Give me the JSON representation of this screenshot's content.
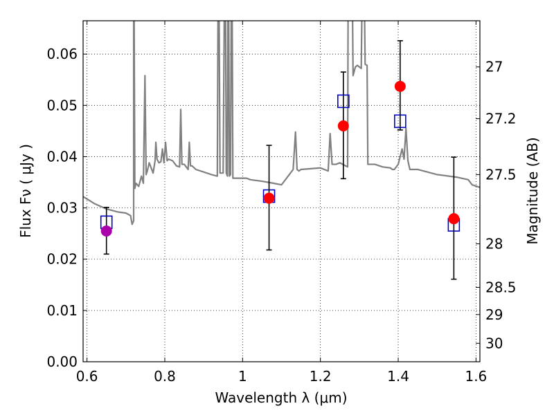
{
  "chart_data": {
    "type": "scatter",
    "xlabel": "Wavelength  λ (μm)",
    "ylabel": "Flux  Fν  ( μJy )",
    "ylabel_right": "Magnitude (AB)",
    "xlim": [
      0.59,
      1.61
    ],
    "ylim": [
      0.0,
      0.0665
    ],
    "grid": true,
    "x_ticks": [
      0.6,
      0.8,
      1.0,
      1.2,
      1.4,
      1.6
    ],
    "x_tick_labels": [
      "0.6",
      "0.8",
      "1",
      "1.2",
      "1.4",
      "1.6"
    ],
    "y_ticks": [
      0.0,
      0.01,
      0.02,
      0.03,
      0.04,
      0.05,
      0.06
    ],
    "y_tick_labels": [
      "0.00",
      "0.01",
      "0.02",
      "0.03",
      "0.04",
      "0.05",
      "0.06"
    ],
    "right_axis": {
      "label_values_flux": [
        0.0575,
        0.0474,
        0.0365,
        0.023,
        0.0145,
        0.0092,
        0.0036
      ],
      "labels": [
        "27",
        "27.2",
        "27.5",
        "28",
        "28.5",
        "29",
        "30"
      ]
    },
    "series": [
      {
        "kind": "model_spectrum",
        "color": "#808080",
        "x": [
          0.59,
          0.62,
          0.65,
          0.68,
          0.7,
          0.712,
          0.716,
          0.72,
          0.72,
          0.723,
          0.726,
          0.733,
          0.74,
          0.745,
          0.749,
          0.752,
          0.755,
          0.76,
          0.77,
          0.775,
          0.777,
          0.78,
          0.785,
          0.79,
          0.794,
          0.798,
          0.802,
          0.806,
          0.81,
          0.82,
          0.83,
          0.838,
          0.841,
          0.844,
          0.85,
          0.86,
          0.863,
          0.866,
          0.87,
          0.88,
          0.9,
          0.92,
          0.935,
          0.938,
          0.942,
          0.946,
          0.95,
          0.955,
          0.958,
          0.961,
          0.963,
          0.966,
          0.969,
          0.972,
          0.975,
          0.978,
          0.981,
          0.99,
          1.0,
          1.01,
          1.02,
          1.05,
          1.08,
          1.1,
          1.12,
          1.13,
          1.136,
          1.14,
          1.145,
          1.15,
          1.2,
          1.22,
          1.225,
          1.23,
          1.24,
          1.25,
          1.27,
          1.272,
          1.28,
          1.284,
          1.29,
          1.295,
          1.3,
          1.305,
          1.31,
          1.315,
          1.32,
          1.322,
          1.33,
          1.34,
          1.36,
          1.38,
          1.385,
          1.39,
          1.4,
          1.41,
          1.415,
          1.42,
          1.425,
          1.43,
          1.45,
          1.5,
          1.55,
          1.58,
          1.59,
          1.61
        ],
        "y": [
          0.0322,
          0.0308,
          0.0298,
          0.0292,
          0.029,
          0.0285,
          0.0268,
          0.0275,
          0.09,
          0.0338,
          0.0348,
          0.0342,
          0.0362,
          0.0348,
          0.0558,
          0.0365,
          0.0372,
          0.0388,
          0.0368,
          0.0392,
          0.0428,
          0.0395,
          0.0388,
          0.039,
          0.0415,
          0.0388,
          0.0428,
          0.0392,
          0.0395,
          0.0392,
          0.0382,
          0.038,
          0.0492,
          0.0385,
          0.0385,
          0.0375,
          0.0428,
          0.0382,
          0.0382,
          0.0375,
          0.037,
          0.0365,
          0.0362,
          0.09,
          0.0368,
          0.0368,
          0.0368,
          0.09,
          0.0368,
          0.0362,
          0.09,
          0.0362,
          0.0365,
          0.09,
          0.0358,
          0.0358,
          0.0358,
          0.0358,
          0.0358,
          0.0358,
          0.0355,
          0.0352,
          0.0348,
          0.0345,
          0.0365,
          0.0375,
          0.0448,
          0.0375,
          0.0372,
          0.0375,
          0.0378,
          0.0372,
          0.0445,
          0.0385,
          0.0385,
          0.0388,
          0.038,
          0.09,
          0.09,
          0.0558,
          0.0575,
          0.0578,
          0.0575,
          0.0572,
          0.09,
          0.058,
          0.0578,
          0.0385,
          0.0385,
          0.0385,
          0.038,
          0.0378,
          0.0375,
          0.0375,
          0.0385,
          0.0415,
          0.0395,
          0.0455,
          0.0392,
          0.0375,
          0.0375,
          0.0365,
          0.036,
          0.0355,
          0.0345,
          0.034
        ]
      },
      {
        "kind": "model_photometry",
        "marker": "square",
        "color": "#0000cc",
        "x": [
          0.65,
          1.068,
          1.259,
          1.405,
          1.543
        ],
        "y": [
          0.0272,
          0.0323,
          0.0508,
          0.0469,
          0.0267
        ]
      },
      {
        "kind": "observed_photometry",
        "marker": "circle",
        "errorbars": true,
        "x": [
          0.65,
          1.068,
          1.259,
          1.405,
          1.543
        ],
        "y": [
          0.0255,
          0.0319,
          0.046,
          0.0537,
          0.0279
        ],
        "yerr_low": [
          0.021,
          0.0218,
          0.0357,
          0.0452,
          0.0161
        ],
        "yerr_high": [
          0.0301,
          0.0422,
          0.0565,
          0.0626,
          0.0399
        ],
        "colors": [
          "#aa00aa",
          "#ff0000",
          "#ff0000",
          "#ff0000",
          "#ff0000"
        ]
      }
    ]
  }
}
